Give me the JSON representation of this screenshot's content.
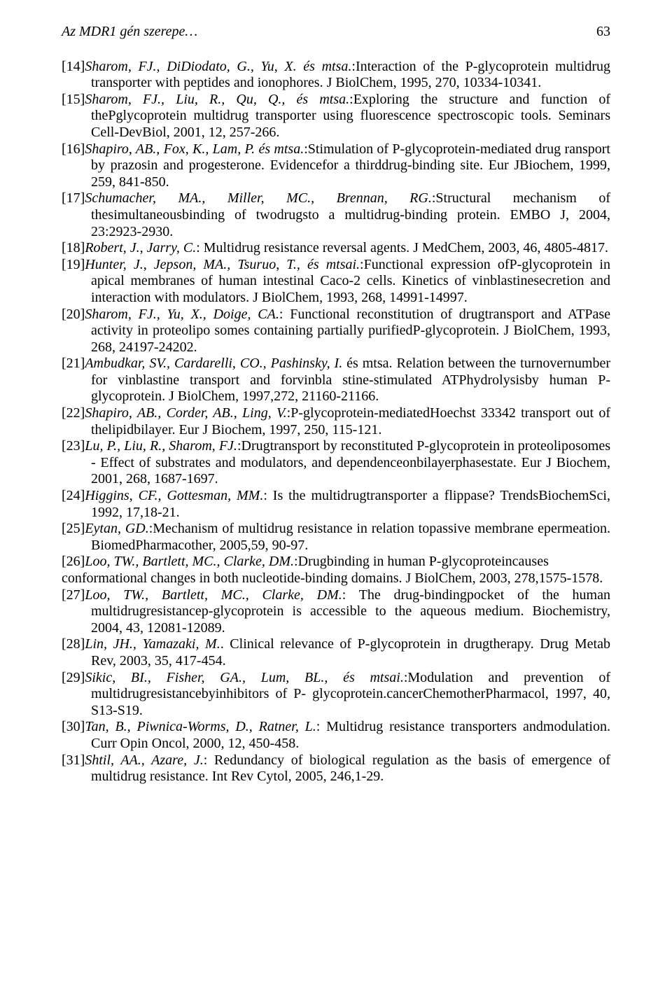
{
  "page": {
    "running_title": "Az MDR1 gén szerepe…",
    "page_number": "63"
  },
  "typography": {
    "font_family": "Times New Roman",
    "body_font_size_pt": 12,
    "text_color": "#000000",
    "background_color": "#ffffff"
  },
  "references": [
    {
      "num": "[14]",
      "authors": "Sharom, FJ., DiDiodato, G., Yu, X. és mtsa.",
      "rest": ":Interaction of the P-glycoprotein multidrug transporter with peptides and ionophores. J BiolChem, 1995, 270, 10334-10341."
    },
    {
      "num": "[15]",
      "authors": "Sharom, FJ., Liu, R., Qu, Q., és mtsa.",
      "rest": ":Exploring the structure and function of thePglycoprotein multidrug transporter using fluorescence spectroscopic tools. Seminars Cell-DevBiol, 2001, 12, 257-266."
    },
    {
      "num": "[16]",
      "authors": "Shapiro, AB., Fox, K., Lam, P. és mtsa.",
      "rest": ":Stimulation of P-glycoprotein-mediated drug ransport by prazosin and progesterone. Evidencefor a thirddrug-binding site. Eur JBiochem, 1999, 259, 841-850."
    },
    {
      "num": "[17]",
      "authors": "Schumacher, MA., Miller, MC., Brennan, RG.",
      "rest": ":Structural mechanism of thesimultaneousbinding of twodrugsto a multidrug-binding protein. EMBO J, 2004, 23:2923-2930."
    },
    {
      "num": "[18]",
      "authors": "Robert, J., Jarry, C.",
      "rest": ": Multidrug resistance reversal agents. J MedChem, 2003, 46, 4805-4817."
    },
    {
      "num": "[19]",
      "authors": "Hunter, J., Jepson, MA., Tsuruo, T., és mtsai.",
      "rest": ":Functional expression ofP-glycoprotein in apical membranes of human intestinal Caco-2 cells. Kinetics of vinblastinesecretion and interaction with modulators. J BiolChem, 1993, 268, 14991-14997."
    },
    {
      "num": "[20]",
      "authors": "Sharom, FJ., Yu, X., Doige, CA.",
      "rest": ": Functional reconstitution of drugtransport and ATPase activity in proteolipo somes containing partially purifiedP-glycoprotein. J BiolChem, 1993, 268, 24197-24202."
    },
    {
      "num": "[21]",
      "authors": "Ambudkar, SV., Cardarelli, CO., Pashinsky, I.",
      "rest": " és mtsa. Relation between the turnovernumber for vinblastine transport and forvinbla stine-stimulated ATPhydrolysisby human P-glycoprotein. J BiolChem, 1997,272, 21160-21166."
    },
    {
      "num": "[22]",
      "authors": "Shapiro, AB., Corder, AB., Ling, V.",
      "rest": ":P-glycoprotein-mediatedHoechst 33342 transport out of thelipidbilayer. Eur J Biochem, 1997, 250, 115-121."
    },
    {
      "num": "[23]",
      "authors": "Lu, P., Liu, R., Sharom, FJ.",
      "rest": ":Drugtransport by reconstituted P-glycoprotein in proteoliposomes - Effect of substrates and modulators, and dependenceonbilayerphasestate. Eur J Biochem, 2001, 268, 1687-1697."
    },
    {
      "num": "[24]",
      "authors": "Higgins, CF., Gottesman, MM.",
      "rest": ": Is the multidrugtransporter a flippase? TrendsBiochemSci, 1992, 17,18-21."
    },
    {
      "num": "[25]",
      "authors": "Eytan, GD.",
      "rest": ":Mechanism of multidrug resistance in relation topassive membrane epermeation. BiomedPharmacother, 2005,59, 90-97."
    },
    {
      "num": "[26]",
      "authors": "Loo, TW., Bartlett, MC., Clarke, DM.",
      "rest": ":Drugbinding in human P-glycoproteincauses",
      "cont": "conformational changes in both nucleotide-binding domains. J BiolChem, 2003, 278,1575-1578."
    },
    {
      "num": "[27]",
      "authors": "Loo, TW., Bartlett, MC., Clarke, DM.",
      "rest": ": The drug-bindingpocket of the human multidrugresistancep-glycoprotein is accessible to the aqueous medium. Biochemistry, 2004, 43, 12081-12089."
    },
    {
      "num": "[28]",
      "authors": "Lin, JH., Yamazaki, M.",
      "rest": ". Clinical relevance of P-glycoprotein in drugtherapy. Drug Metab Rev, 2003, 35, 417-454."
    },
    {
      "num": "[29]",
      "authors": "Sikic, BI., Fisher, GA., Lum, BL., és mtsai.",
      "rest": ":Modulation and prevention of multidrugresistancebyinhibitors of P- glycoprotein.cancerChemotherPharmacol, 1997, 40, S13-S19."
    },
    {
      "num": "[30]",
      "authors": "Tan, B., Piwnica-Worms, D., Ratner, L.",
      "rest": ": Multidrug resistance transporters andmodulation. Curr Opin Oncol, 2000, 12, 450-458."
    },
    {
      "num": "[31]",
      "authors": "Shtil, AA., Azare, J.",
      "rest": ": Redundancy of biological regulation as the basis of emergence of multidrug resistance. Int Rev Cytol, 2005, 246,1-29."
    }
  ]
}
